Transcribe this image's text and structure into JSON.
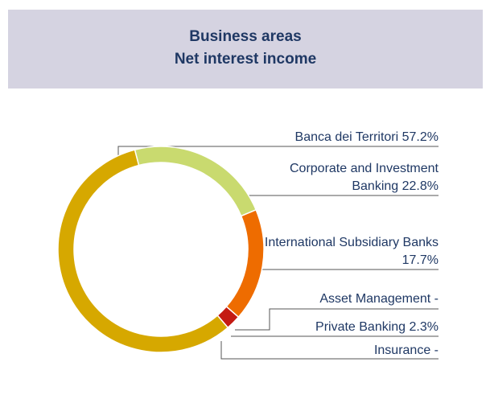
{
  "chart_data": {
    "type": "donut",
    "title": "Business areas",
    "subtitle": "Net interest income",
    "categories": [
      "Banca dei Territori",
      "Corporate and Investment Banking",
      "International Subsidiary Banks",
      "Asset Management",
      "Private Banking",
      "Insurance"
    ],
    "values": [
      57.2,
      22.8,
      17.7,
      null,
      2.3,
      null
    ],
    "value_labels": [
      "57.2%",
      "22.8%",
      "17.7%",
      "-",
      "2.3%",
      "-"
    ],
    "colors": [
      "#d6a800",
      "#c9da6f",
      "#ee6c00",
      "#8e8e8e",
      "#c41a12",
      "#9a9a9a"
    ]
  }
}
